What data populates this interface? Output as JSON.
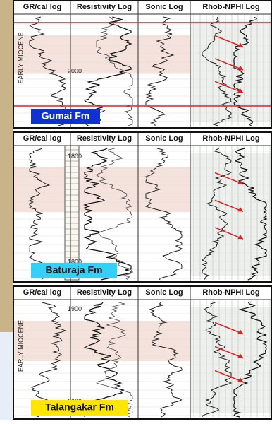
{
  "panels": [
    {
      "headers": [
        "GR/cal log",
        "Resistivity Log",
        "Sonic Log",
        "Rhob-NPHI Log"
      ],
      "formation": "Gumai Fm",
      "age": "EARLY MIOCENE",
      "depths": [
        "2000"
      ]
    },
    {
      "headers": [
        "GR/cal log",
        "Resistivity Log",
        "Sonic Log",
        "Rhob-NPHI Log"
      ],
      "formation": "Baturaja Fm",
      "depths": [
        "1800",
        "1800"
      ]
    },
    {
      "headers": [
        "GR/cal log",
        "Resistivity Log",
        "Sonic Log",
        "Rhob-NPHI Log"
      ],
      "formation": "Talangakar Fm",
      "age": "EARLY MIOCENE",
      "depths": [
        "1900",
        "2000"
      ]
    }
  ]
}
